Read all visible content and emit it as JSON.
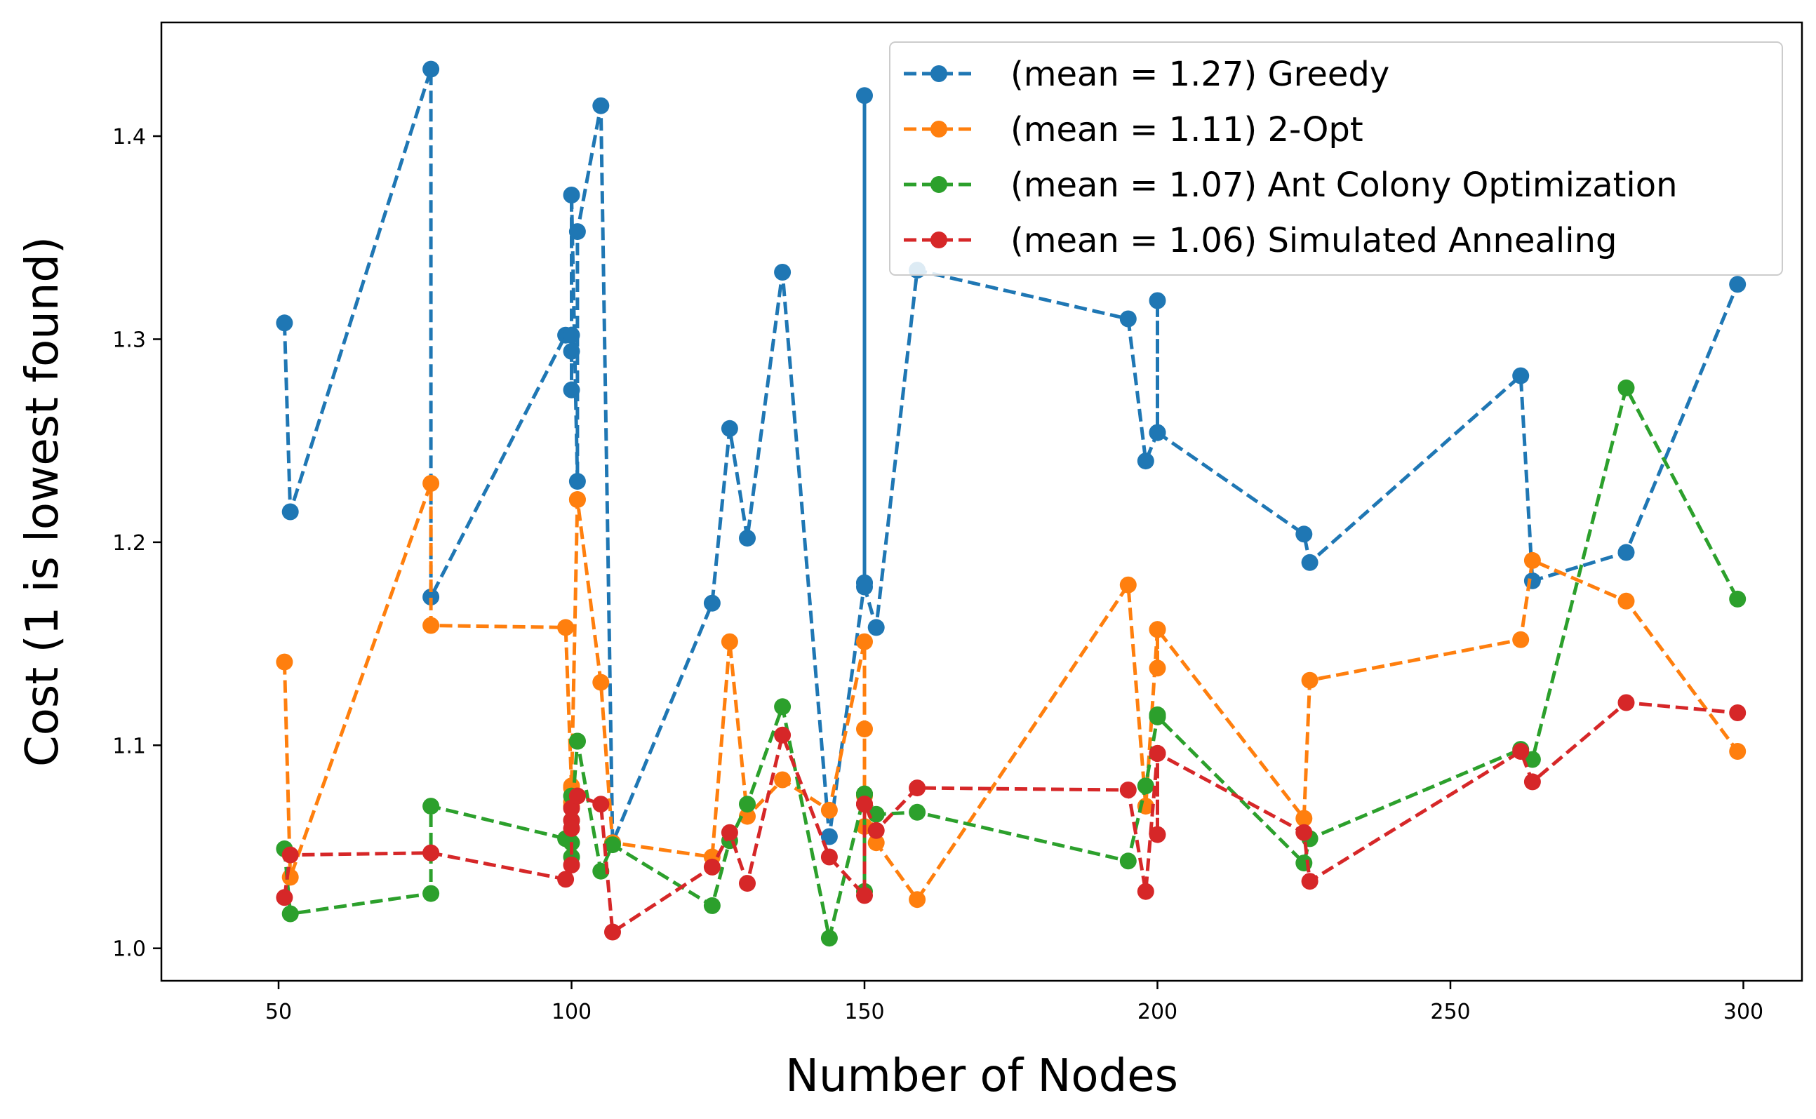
{
  "chart_data": {
    "type": "line",
    "xlabel": "Number of Nodes",
    "ylabel": "Cost (1 is lowest found)",
    "xlim": [
      30,
      310
    ],
    "ylim": [
      0.984,
      1.456
    ],
    "xticks": [
      50,
      100,
      150,
      200,
      250,
      300
    ],
    "yticks": [
      1.0,
      1.1,
      1.2,
      1.3,
      1.4
    ],
    "xtick_labels": [
      "50",
      "100",
      "150",
      "200",
      "250",
      "300"
    ],
    "ytick_labels": [
      "1.0",
      "1.1",
      "1.2",
      "1.3",
      "1.4"
    ],
    "grid": false,
    "legend_position": "top-right",
    "line_style": "dashed",
    "marker": "circle",
    "x": [
      51,
      52,
      76,
      76,
      99,
      100,
      100,
      100,
      100,
      101,
      101,
      105,
      107,
      124,
      127,
      130,
      136,
      144,
      150,
      150,
      150,
      150,
      152,
      159,
      195,
      198,
      200,
      200,
      200,
      225,
      226,
      262,
      264,
      280,
      299
    ],
    "series": [
      {
        "name": "(mean = 1.27) Greedy",
        "color": "#1f77b4",
        "values": [
          1.308,
          1.215,
          1.433,
          1.173,
          1.302,
          1.302,
          1.294,
          1.275,
          1.371,
          1.23,
          1.353,
          1.415,
          1.052,
          1.17,
          1.256,
          1.202,
          1.333,
          1.055,
          1.18,
          1.42,
          1.18,
          1.178,
          1.158,
          1.334,
          1.31,
          1.24,
          1.254,
          1.319,
          1.254,
          1.204,
          1.19,
          1.282,
          1.181,
          1.195,
          1.327
        ]
      },
      {
        "name": "(mean = 1.11) 2-Opt",
        "color": "#ff7f0e",
        "values": [
          1.141,
          1.035,
          1.229,
          1.159,
          1.158,
          1.08,
          1.072,
          1.07,
          1.079,
          1.221,
          1.221,
          1.131,
          1.052,
          1.045,
          1.151,
          1.065,
          1.083,
          1.068,
          1.151,
          1.108,
          1.06,
          1.075,
          1.052,
          1.024,
          1.179,
          1.07,
          1.157,
          1.138,
          1.157,
          1.064,
          1.132,
          1.152,
          1.191,
          1.171,
          1.097
        ]
      },
      {
        "name": "(mean = 1.07) Ant Colony Optimization",
        "color": "#2ca02c",
        "values": [
          1.049,
          1.017,
          1.027,
          1.07,
          1.054,
          1.045,
          1.075,
          1.052,
          1.063,
          1.102,
          1.102,
          1.038,
          1.051,
          1.021,
          1.053,
          1.071,
          1.119,
          1.005,
          1.076,
          1.028,
          1.076,
          1.076,
          1.066,
          1.067,
          1.043,
          1.08,
          1.114,
          1.115,
          1.114,
          1.042,
          1.054,
          1.098,
          1.093,
          1.276,
          1.172
        ]
      },
      {
        "name": "(mean = 1.06) Simulated Annealing",
        "color": "#d62728",
        "values": [
          1.025,
          1.046,
          1.047,
          1.047,
          1.034,
          1.041,
          1.069,
          1.063,
          1.059,
          1.075,
          1.075,
          1.071,
          1.008,
          1.04,
          1.057,
          1.032,
          1.105,
          1.045,
          1.026,
          1.071,
          1.071,
          1.071,
          1.058,
          1.079,
          1.078,
          1.028,
          1.096,
          1.056,
          1.096,
          1.057,
          1.033,
          1.097,
          1.082,
          1.121,
          1.116
        ]
      }
    ]
  }
}
